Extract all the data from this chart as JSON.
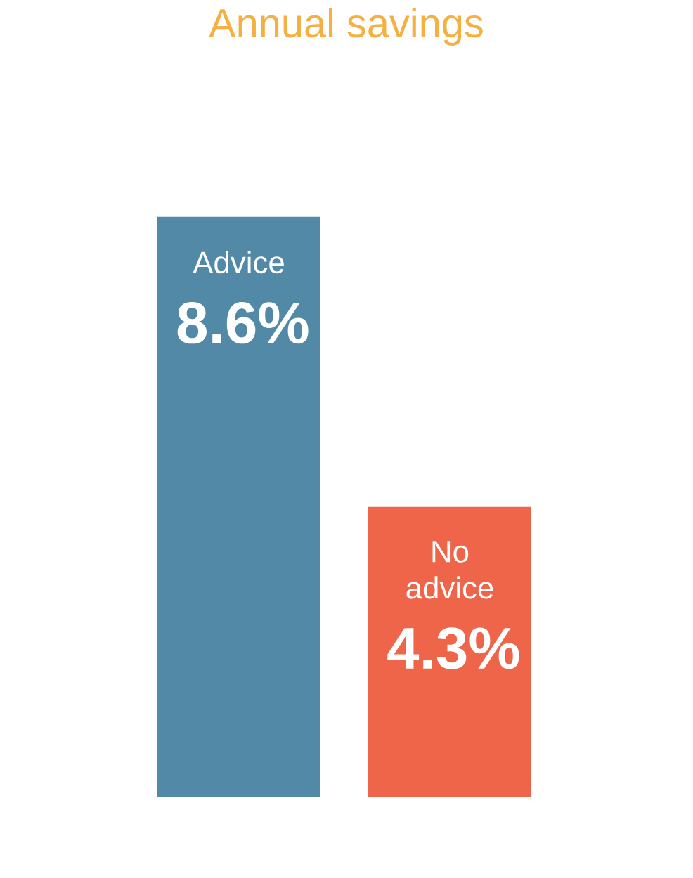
{
  "chart_data": {
    "type": "bar",
    "title": "Annual savings",
    "categories": [
      "Advice",
      "No advice"
    ],
    "values": [
      8.6,
      4.3
    ],
    "colors": [
      "#5189a7",
      "#ee654a"
    ],
    "value_labels": [
      "8.6%",
      "4.3%"
    ]
  }
}
